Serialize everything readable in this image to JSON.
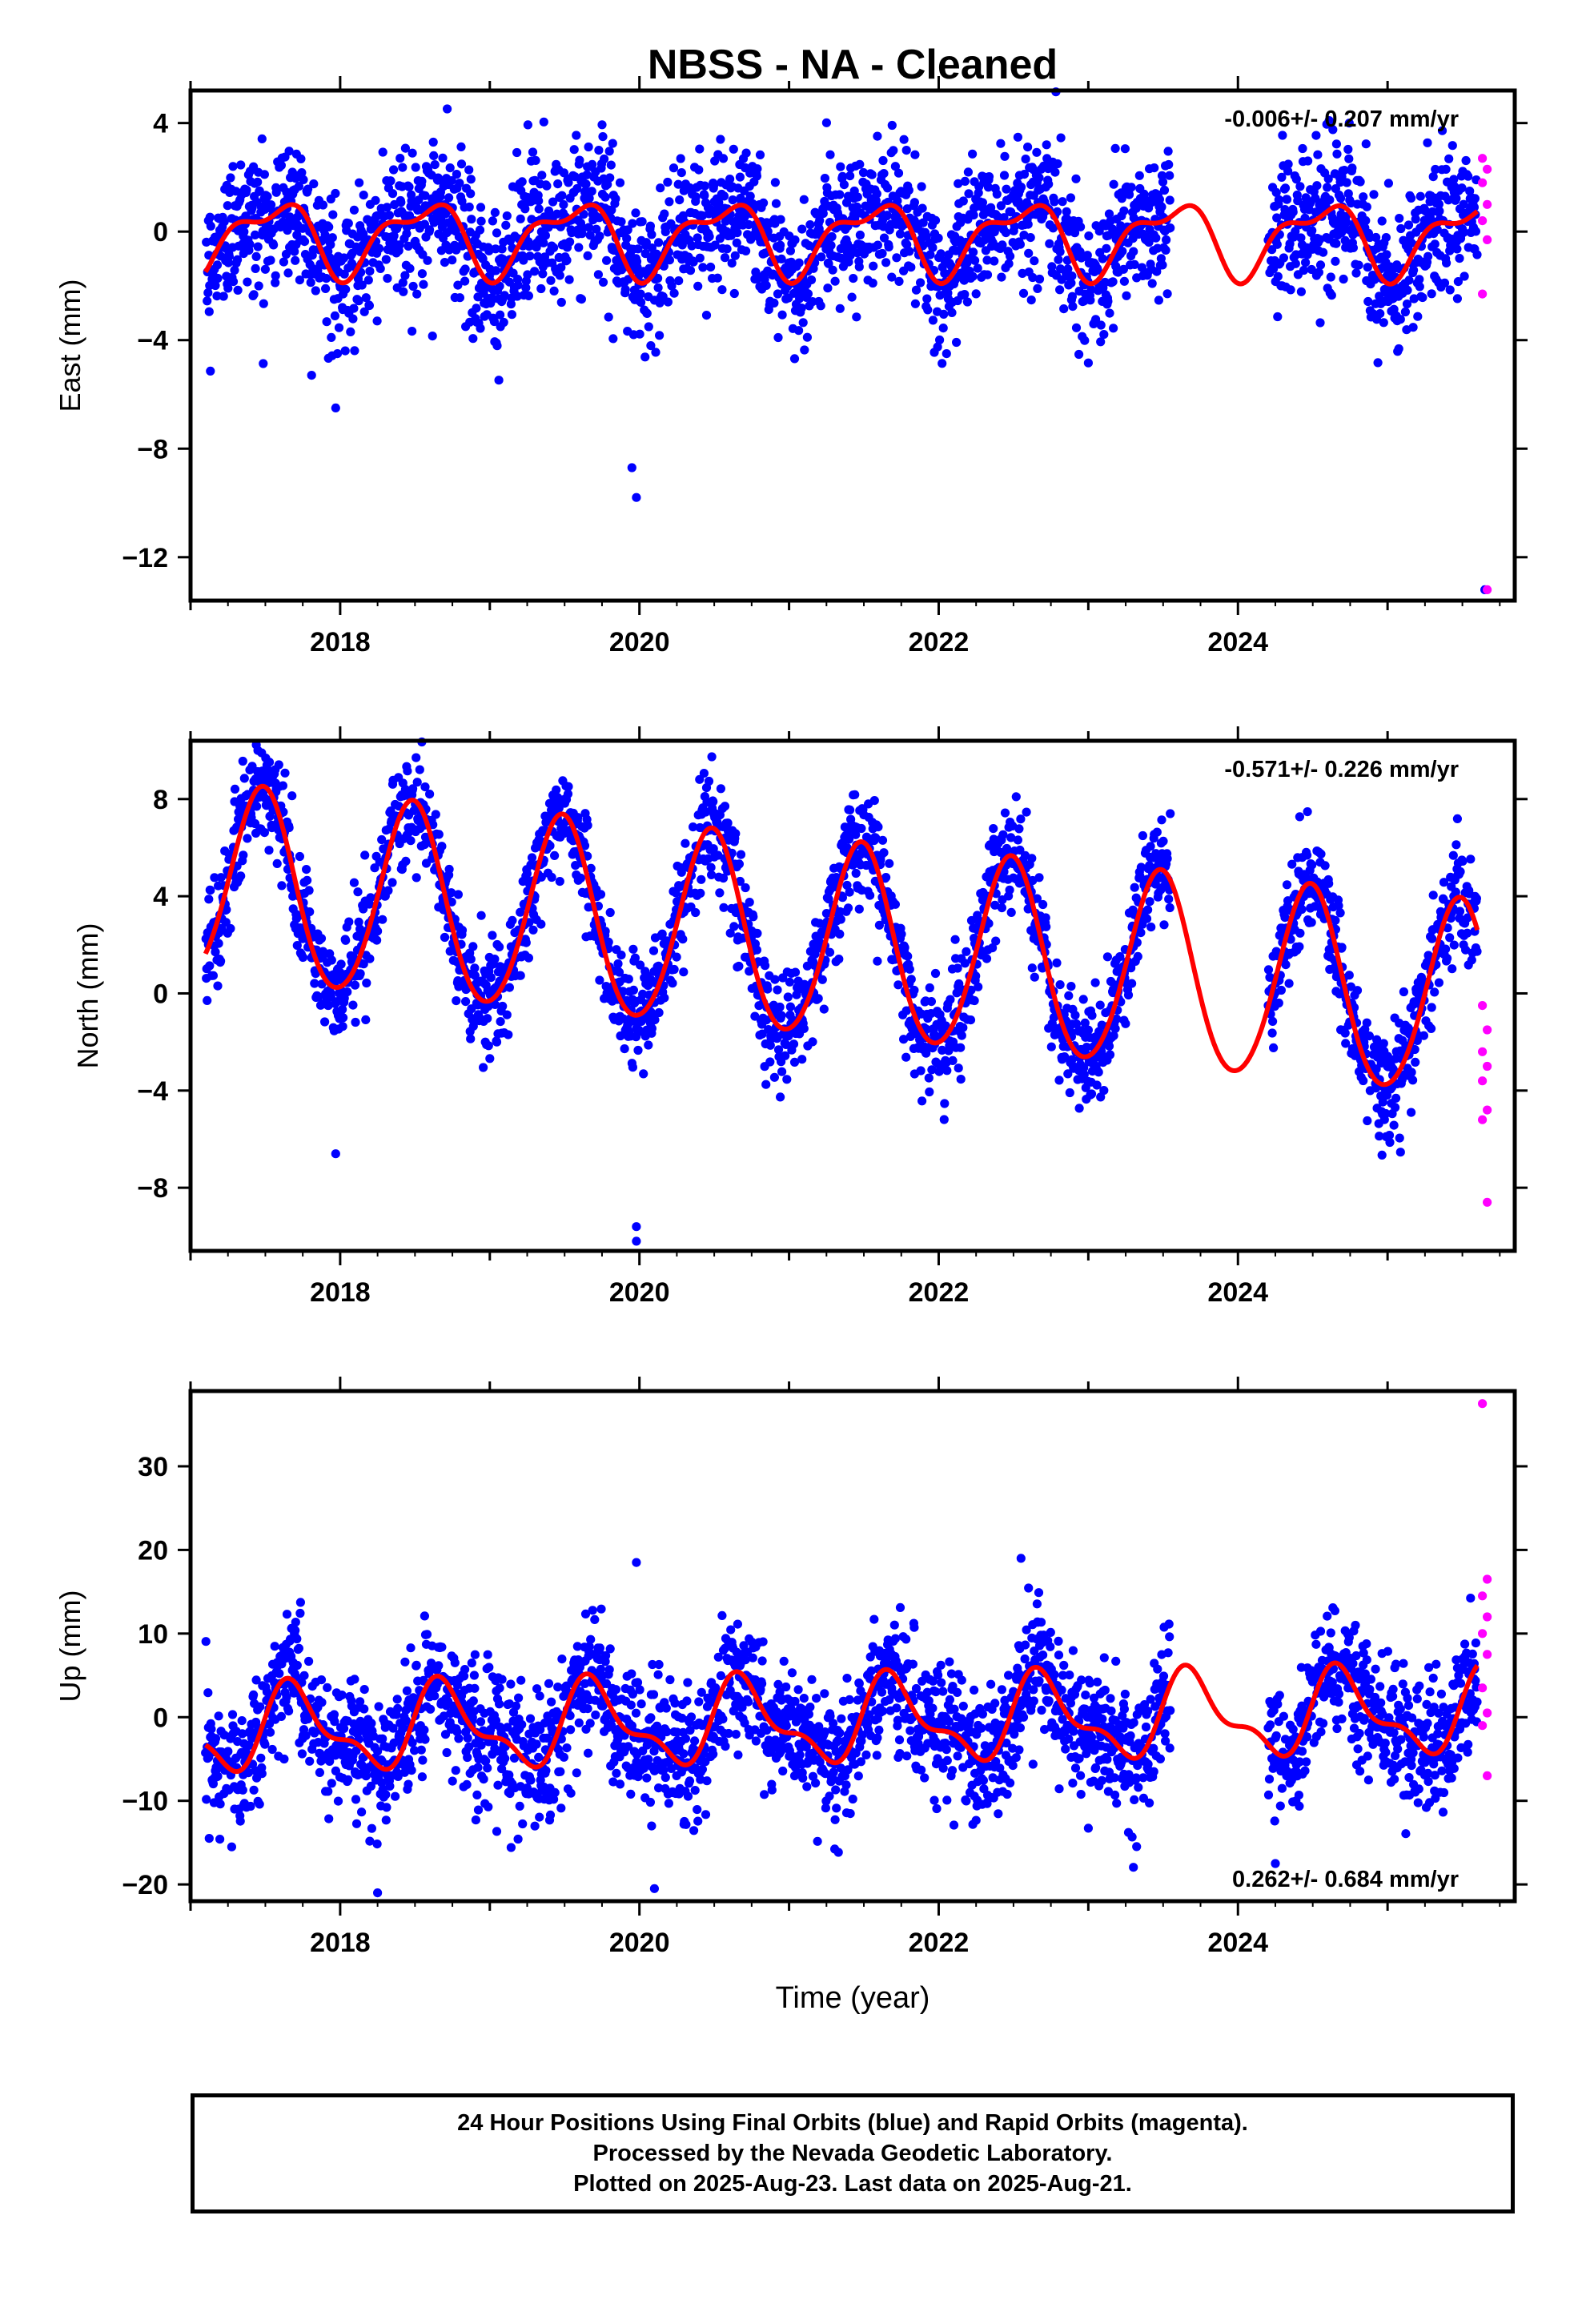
{
  "title": "NBSS  - NA - Cleaned",
  "footer": {
    "lines": [
      "24 Hour Positions Using Final Orbits (blue) and Rapid Orbits (magenta).",
      "Processed by the Nevada Geodetic Laboratory.",
      "Plotted on 2025-Aug-23. Last data on 2025-Aug-21."
    ]
  },
  "colors": {
    "final_orbits": "#0000ff",
    "rapid_orbits": "#ff00ff",
    "model": "#ff0000"
  },
  "chart_data": [
    {
      "type": "scatter",
      "panel": "east",
      "ylabel": "East (mm)",
      "xlabel": "",
      "xlim": [
        2017.0,
        2025.85
      ],
      "ylim": [
        -13.6,
        5.2
      ],
      "xticks": [
        2018,
        2020,
        2022,
        2024
      ],
      "yticks": [
        4,
        0,
        -4,
        -8,
        -12
      ],
      "ytick_labels": [
        "4",
        "0",
        "−4",
        "−8",
        "−12"
      ],
      "rate_label": "-0.006+/- 0.207 mm/yr",
      "rate_position": "top-right",
      "model": {
        "offset": -0.2,
        "trend": -0.006,
        "annual_amp": 1.2,
        "annual_phase_peak": 2017.55,
        "semiannual_amp": 0.55,
        "semiannual_phase_peak": 2017.75
      },
      "data_range": [
        2017.1,
        2025.6
      ],
      "gaps": [
        [
          2023.55,
          2024.2
        ]
      ],
      "noise_sd": 1.3,
      "outliers": [
        [
          2019.98,
          -9.8
        ],
        [
          2019.95,
          -8.7
        ],
        [
          2017.97,
          -6.5
        ],
        [
          2025.65,
          -13.2
        ]
      ],
      "rapid": {
        "x": 2025.65,
        "values": [
          2.7,
          2.3,
          1.8,
          1.0,
          0.4,
          -0.3,
          -2.3,
          -13.2
        ]
      }
    },
    {
      "type": "scatter",
      "panel": "north",
      "ylabel": "North (mm)",
      "xlabel": "",
      "xlim": [
        2017.0,
        2025.85
      ],
      "ylim": [
        -10.6,
        10.4
      ],
      "xticks": [
        2018,
        2020,
        2022,
        2024
      ],
      "yticks": [
        8,
        4,
        0,
        -4,
        -8
      ],
      "ytick_labels": [
        "8",
        "4",
        "0",
        "−4",
        "−8"
      ],
      "rate_label": "-0.571+/- 0.226 mm/yr",
      "rate_position": "top-right",
      "model": {
        "offset": 2.0,
        "trend": -0.571,
        "annual_amp": 4.0,
        "annual_phase_peak": 2017.48,
        "semiannual_amp": 0.3,
        "semiannual_phase_peak": 2017.5
      },
      "data_range": [
        2017.1,
        2025.6
      ],
      "gaps": [
        [
          2023.55,
          2024.2
        ]
      ],
      "noise_sd": 1.1,
      "outliers": [
        [
          2017.45,
          10.0
        ],
        [
          2019.98,
          -10.2
        ],
        [
          2019.98,
          -9.6
        ],
        [
          2017.97,
          -6.6
        ]
      ],
      "rapid": {
        "x": 2025.65,
        "values": [
          -0.5,
          -1.5,
          -2.4,
          -3.0,
          -3.6,
          -4.8,
          -5.2,
          -8.6
        ]
      }
    },
    {
      "type": "scatter",
      "panel": "up",
      "ylabel": "Up (mm)",
      "xlabel": "Time (year)",
      "xlim": [
        2017.0,
        2025.85
      ],
      "ylim": [
        -22.0,
        39.0
      ],
      "xticks": [
        2018,
        2020,
        2022,
        2024
      ],
      "yticks": [
        30,
        20,
        10,
        0,
        -10,
        -20
      ],
      "ytick_labels": [
        "30",
        "20",
        "10",
        "0",
        "−10",
        "−20"
      ],
      "rate_label": "0.262+/- 0.684 mm/yr",
      "rate_position": "bottom-right",
      "model": {
        "offset": -0.5,
        "trend": 0.262,
        "annual_amp": 4.5,
        "annual_phase_peak": 2017.7,
        "semiannual_amp": 2.0,
        "semiannual_phase_peak": 2017.62
      },
      "data_range": [
        2017.1,
        2025.6
      ],
      "gaps": [
        [
          2023.55,
          2024.2
        ]
      ],
      "noise_sd": 3.8,
      "outliers": [
        [
          2018.25,
          -21.0
        ],
        [
          2020.1,
          -20.5
        ],
        [
          2019.98,
          18.5
        ],
        [
          2022.55,
          19.0
        ],
        [
          2024.25,
          -17.5
        ]
      ],
      "rapid": {
        "x": 2025.65,
        "values": [
          37.5,
          16.5,
          14.5,
          12.0,
          10.0,
          7.5,
          3.5,
          0.5,
          -1.0,
          -7.0
        ]
      }
    }
  ]
}
